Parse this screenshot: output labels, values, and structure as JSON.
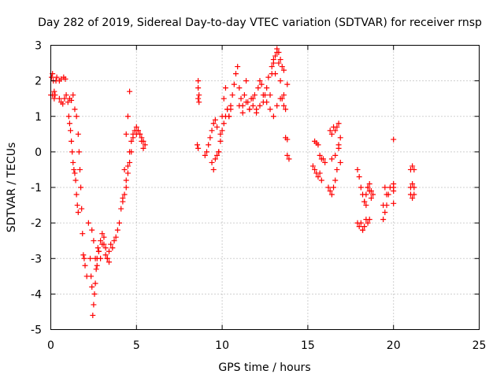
{
  "chart_data": {
    "type": "scatter",
    "title": "Day 282 of 2019, Sidereal Day-to-day VTEC variation (SDTVAR) for receiver rnsp",
    "xlabel": "GPS time / hours",
    "ylabel": "SDTVAR / TECUs",
    "xlim": [
      0,
      25
    ],
    "ylim": [
      -5,
      3
    ],
    "grid": true,
    "marker": "plus",
    "colors": {
      "series": "#ff0000",
      "grid": "#a0a0a0",
      "axis": "#000000"
    },
    "xticks": [
      0,
      5,
      10,
      15,
      20,
      25
    ],
    "yticks": [
      -5,
      -4,
      -3,
      -2,
      -1,
      0,
      1,
      2,
      3
    ],
    "xtick_labels": [
      "0",
      "5",
      "10",
      "15",
      "20",
      "25"
    ],
    "ytick_labels": [
      "-5",
      "-4",
      "-3",
      "-2",
      "-1",
      "0",
      "1",
      "2",
      "3"
    ],
    "series": [
      {
        "name": "SDTVAR",
        "x": [
          0.0,
          0.05,
          0.1,
          0.15,
          0.2,
          0.25,
          0.3,
          0.1,
          0.2,
          0.35,
          0.5,
          0.6,
          0.75,
          0.85,
          0.5,
          0.6,
          0.7,
          0.8,
          0.9,
          1.0,
          1.1,
          1.2,
          1.3,
          1.05,
          1.1,
          1.15,
          1.2,
          1.25,
          1.3,
          1.35,
          1.4,
          1.45,
          1.5,
          1.55,
          1.6,
          1.4,
          1.5,
          1.6,
          1.65,
          1.7,
          1.75,
          1.8,
          1.85,
          1.9,
          1.95,
          2.0,
          2.1,
          2.2,
          2.3,
          2.35,
          2.4,
          2.45,
          2.5,
          2.55,
          2.6,
          2.65,
          2.7,
          2.75,
          2.4,
          2.5,
          2.6,
          2.7,
          2.8,
          2.9,
          3.0,
          3.1,
          3.2,
          3.3,
          3.4,
          2.8,
          2.9,
          3.0,
          3.1,
          3.2,
          3.3,
          3.4,
          3.5,
          3.6,
          3.7,
          3.8,
          3.9,
          4.0,
          4.1,
          4.2,
          4.3,
          4.4,
          4.5,
          4.6,
          4.7,
          4.8,
          4.4,
          4.5,
          4.6,
          4.7,
          4.8,
          4.9,
          5.0,
          5.1,
          5.2,
          5.3,
          5.4,
          5.5,
          5.0,
          5.1,
          5.2,
          5.3,
          5.4,
          4.2,
          4.3,
          4.4,
          4.5,
          4.6,
          8.6,
          8.6,
          8.65,
          8.65,
          8.6,
          8.55,
          8.6,
          9.0,
          9.1,
          9.2,
          9.3,
          9.4,
          9.5,
          9.6,
          9.7,
          9.8,
          9.9,
          10.0,
          10.1,
          10.2,
          10.3,
          10.4,
          10.5,
          10.6,
          10.7,
          10.8,
          10.9,
          11.0,
          11.1,
          11.2,
          11.3,
          11.4,
          11.5,
          11.6,
          11.7,
          11.8,
          11.9,
          12.0,
          12.1,
          12.2,
          12.3,
          12.4,
          12.5,
          12.6,
          12.7,
          12.8,
          12.9,
          13.0,
          13.1,
          13.2,
          13.3,
          13.4,
          13.5,
          13.6,
          13.7,
          13.8,
          13.9,
          9.4,
          9.5,
          9.6,
          9.7,
          9.8,
          9.9,
          10.0,
          10.1,
          10.2,
          10.3,
          10.4,
          10.5,
          11.0,
          11.2,
          11.4,
          11.6,
          11.8,
          12.0,
          12.2,
          12.4,
          12.6,
          12.8,
          13.0,
          13.2,
          13.4,
          13.6,
          13.8,
          12.9,
          13.0,
          13.1,
          13.2,
          13.3,
          13.4,
          13.5,
          13.6,
          13.7,
          13.8,
          15.4,
          15.5,
          15.6,
          15.7,
          15.8,
          15.9,
          16.0,
          15.3,
          15.4,
          15.5,
          15.6,
          15.7,
          15.8,
          16.2,
          16.3,
          16.4,
          16.5,
          16.6,
          16.7,
          16.8,
          16.9,
          16.3,
          16.4,
          16.5,
          16.6,
          16.7,
          16.8,
          16.9,
          16.4,
          16.6,
          16.8,
          17.9,
          18.0,
          18.1,
          18.2,
          18.3,
          18.4,
          18.5,
          18.6,
          18.7,
          18.8,
          17.9,
          18.0,
          18.1,
          18.2,
          18.3,
          18.4,
          18.5,
          18.6,
          18.2,
          18.3,
          18.4,
          18.5,
          18.6,
          18.7,
          19.4,
          19.5,
          19.6,
          19.7,
          19.8,
          19.4,
          19.5,
          19.6,
          20.0,
          20.0,
          20.0,
          20.0,
          20.0,
          21.0,
          21.1,
          21.2,
          21.0,
          21.1,
          21.2,
          21.0,
          21.1,
          21.2
        ],
        "y": [
          1.6,
          2.1,
          2.2,
          2.0,
          1.5,
          1.6,
          2.0,
          1.6,
          1.7,
          2.1,
          2.0,
          2.05,
          2.1,
          2.05,
          1.5,
          1.4,
          1.35,
          1.5,
          1.6,
          1.4,
          1.5,
          1.45,
          1.6,
          1.0,
          0.8,
          0.6,
          0.3,
          0.0,
          -0.3,
          -0.5,
          -0.6,
          -0.8,
          -1.2,
          -1.5,
          -1.7,
          1.2,
          1.0,
          0.5,
          0.0,
          -0.5,
          -1.0,
          -1.6,
          -2.3,
          -2.9,
          -3.0,
          -3.2,
          -3.5,
          -2.0,
          -3.0,
          -3.5,
          -3.8,
          -4.6,
          -4.3,
          -4.0,
          -3.7,
          -3.3,
          -3.0,
          -2.7,
          -2.2,
          -2.5,
          -3.0,
          -3.2,
          -2.8,
          -2.5,
          -2.3,
          -2.6,
          -2.9,
          -3.0,
          -3.1,
          -2.8,
          -3.0,
          -2.6,
          -2.4,
          -2.7,
          -3.0,
          -2.8,
          -2.6,
          -2.7,
          -2.5,
          -2.4,
          -2.2,
          -2.0,
          -1.6,
          -1.4,
          -1.2,
          -0.8,
          -0.4,
          0.0,
          0.3,
          0.5,
          -1.0,
          -0.6,
          -0.3,
          0.0,
          0.4,
          0.6,
          0.7,
          0.6,
          0.5,
          0.4,
          0.3,
          0.2,
          0.5,
          0.6,
          0.5,
          0.3,
          0.1,
          -1.3,
          -0.5,
          0.5,
          1.0,
          1.7,
          2.0,
          1.8,
          1.6,
          1.4,
          1.5,
          0.2,
          0.1,
          -0.1,
          0.0,
          0.2,
          0.4,
          0.6,
          0.8,
          0.9,
          0.7,
          0.0,
          0.5,
          1.0,
          1.5,
          1.8,
          1.2,
          1.0,
          1.3,
          1.6,
          1.9,
          2.2,
          2.4,
          1.8,
          1.5,
          1.3,
          1.6,
          2.0,
          1.4,
          1.2,
          1.5,
          1.3,
          1.6,
          1.2,
          1.8,
          2.0,
          1.9,
          1.4,
          1.6,
          1.8,
          2.1,
          1.6,
          2.4,
          2.6,
          2.2,
          2.8,
          2.5,
          2.0,
          1.5,
          1.3,
          1.2,
          -0.1,
          -0.2,
          -0.3,
          -0.5,
          -0.2,
          -0.1,
          0.0,
          0.3,
          0.6,
          0.8,
          1.0,
          1.2,
          1.0,
          1.2,
          1.3,
          1.1,
          1.4,
          1.2,
          1.5,
          1.1,
          1.3,
          1.6,
          1.4,
          1.2,
          1.0,
          1.3,
          1.5,
          1.6,
          1.9,
          2.2,
          2.5,
          2.7,
          2.9,
          2.8,
          2.6,
          2.4,
          2.3,
          0.4,
          0.35,
          0.3,
          0.25,
          0.2,
          -0.1,
          -0.2,
          -0.2,
          -0.3,
          -0.4,
          -0.5,
          -0.6,
          -0.7,
          -0.6,
          -0.8,
          -1.0,
          -1.1,
          -1.2,
          -1.0,
          -0.8,
          -0.5,
          0.2,
          0.4,
          0.6,
          0.5,
          0.7,
          0.6,
          0.7,
          0.8,
          -0.3,
          -0.2,
          -0.1,
          0.1,
          -0.5,
          -0.7,
          -1.0,
          -1.2,
          -1.4,
          -1.5,
          -1.0,
          -0.9,
          -1.1,
          -1.2,
          -2.0,
          -2.1,
          -2.0,
          -2.2,
          -2.1,
          -1.9,
          -2.0,
          -1.9,
          -2.2,
          -1.4,
          -1.2,
          -1.0,
          -1.1,
          -1.3,
          -1.9,
          -1.7,
          -1.5,
          -1.2,
          -1.0,
          -1.5,
          -1.0,
          -1.2,
          0.35,
          -0.9,
          -1.0,
          -1.1,
          -1.45,
          -0.5,
          -0.4,
          -0.5,
          -1.0,
          -0.9,
          -1.0,
          -1.2,
          -1.3,
          -1.2
        ]
      }
    ]
  }
}
